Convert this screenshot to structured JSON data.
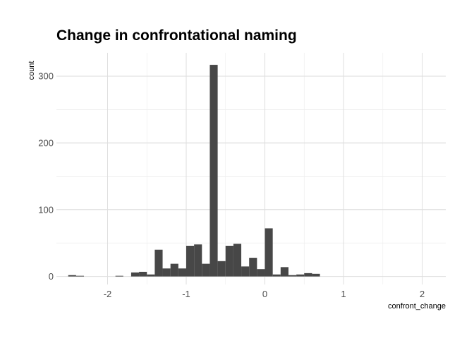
{
  "chart_data": {
    "type": "bar",
    "title": "Change in confrontational naming",
    "xlabel": "confront_change",
    "ylabel": "count",
    "xlim": [
      -2.65,
      2.3
    ],
    "ylim": [
      -12,
      335
    ],
    "x_ticks": [
      -2,
      -1,
      0,
      1,
      2
    ],
    "x_tick_labels": [
      "-2",
      "-1",
      "0",
      "1",
      "2"
    ],
    "y_ticks": [
      0,
      100,
      200,
      300
    ],
    "y_tick_labels": [
      "0",
      "100",
      "200",
      "300"
    ],
    "grid": true,
    "bin_width": 0.1,
    "bins": [
      {
        "x": -2.45,
        "count": 2
      },
      {
        "x": -2.35,
        "count": 1
      },
      {
        "x": -2.25,
        "count": 0
      },
      {
        "x": -2.15,
        "count": 0
      },
      {
        "x": -2.05,
        "count": 0
      },
      {
        "x": -1.95,
        "count": 0
      },
      {
        "x": -1.85,
        "count": 1
      },
      {
        "x": -1.75,
        "count": 0
      },
      {
        "x": -1.65,
        "count": 6
      },
      {
        "x": -1.55,
        "count": 7
      },
      {
        "x": -1.45,
        "count": 3
      },
      {
        "x": -1.35,
        "count": 40
      },
      {
        "x": -1.25,
        "count": 12
      },
      {
        "x": -1.15,
        "count": 19
      },
      {
        "x": -1.05,
        "count": 12
      },
      {
        "x": -0.95,
        "count": 46
      },
      {
        "x": -0.85,
        "count": 48
      },
      {
        "x": -0.75,
        "count": 19
      },
      {
        "x": -0.65,
        "count": 317
      },
      {
        "x": -0.55,
        "count": 23
      },
      {
        "x": -0.45,
        "count": 46
      },
      {
        "x": -0.35,
        "count": 49
      },
      {
        "x": -0.25,
        "count": 15
      },
      {
        "x": -0.15,
        "count": 28
      },
      {
        "x": -0.05,
        "count": 11
      },
      {
        "x": 0.05,
        "count": 72
      },
      {
        "x": 0.15,
        "count": 3
      },
      {
        "x": 0.25,
        "count": 14
      },
      {
        "x": 0.35,
        "count": 2
      },
      {
        "x": 0.45,
        "count": 3
      },
      {
        "x": 0.55,
        "count": 5
      },
      {
        "x": 0.65,
        "count": 4
      }
    ],
    "colors": {
      "bar": "#474747",
      "grid_major": "#dedede",
      "grid_minor": "#ececec",
      "background": "#ffffff"
    }
  }
}
